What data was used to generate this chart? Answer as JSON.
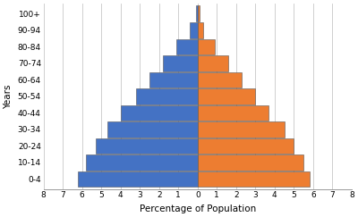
{
  "age_groups": [
    "0-4",
    "10-14",
    "20-24",
    "30-34",
    "40-44",
    "50-54",
    "60-64",
    "70-74",
    "80-84",
    "90-94",
    "100+"
  ],
  "male_values": [
    6.2,
    5.8,
    5.3,
    4.7,
    4.0,
    3.2,
    2.5,
    1.8,
    1.1,
    0.4,
    0.1
  ],
  "female_values": [
    5.8,
    5.5,
    5.0,
    4.5,
    3.7,
    3.0,
    2.3,
    1.6,
    0.9,
    0.3,
    0.1
  ],
  "male_color": "#4472C4",
  "female_color": "#ED7D31",
  "bar_edge_color": "#555555",
  "xlabel": "Percentage of Population",
  "ylabel": "Years",
  "xlim": [
    -8,
    8
  ],
  "xticks": [
    -8,
    -7,
    -6,
    -5,
    -4,
    -3,
    -2,
    -1,
    0,
    1,
    2,
    3,
    4,
    5,
    6,
    7,
    8
  ],
  "xticklabels": [
    "8",
    "7",
    "6",
    "5",
    "4",
    "3",
    "2",
    "1",
    "0",
    "1",
    "2",
    "3",
    "4",
    "5",
    "6",
    "7",
    "8"
  ],
  "background_color": "#ffffff",
  "grid_color": "#c8c8c8",
  "bar_linewidth": 0.4,
  "tick_fontsize": 6.5,
  "label_fontsize": 7.5
}
